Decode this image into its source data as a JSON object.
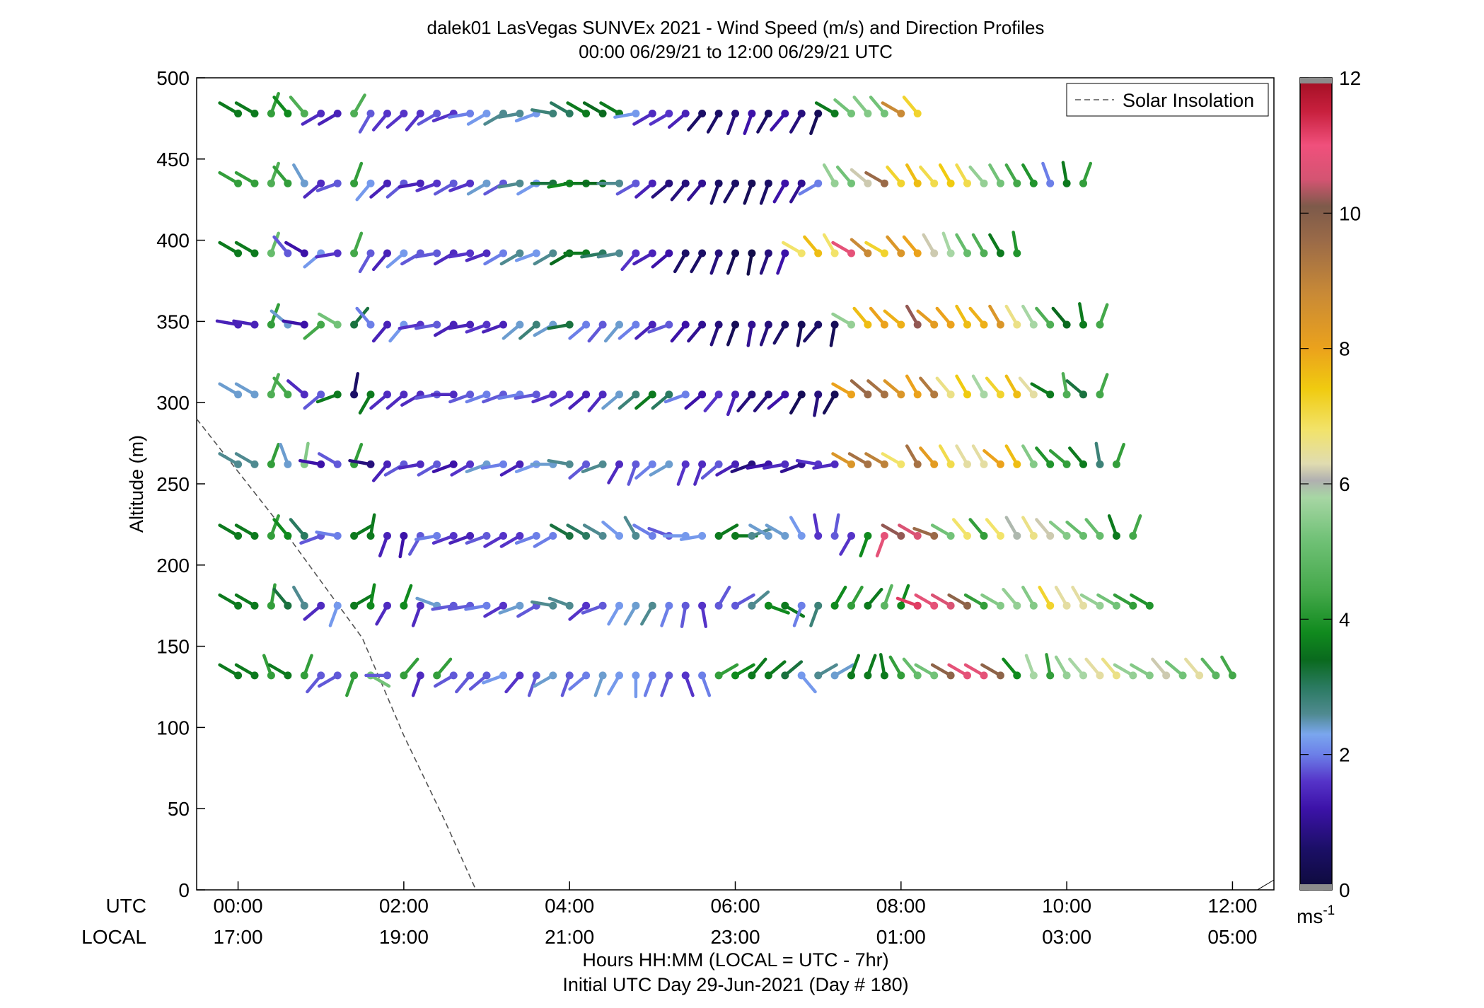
{
  "chart_data": {
    "type": "wind-barb-profile",
    "title": "dalek01 LasVegas SUNVEx 2021 - Wind Speed (m/s) and Direction Profiles",
    "subtitle": "00:00 06/29/21 to 12:00 06/29/21  UTC",
    "ylabel": "Altitude (m)",
    "xlabel": "Hours HH:MM  (LOCAL = UTC - 7hr)",
    "xlabel2": "Initial UTC Day 29-Jun-2021 (Day # 180)",
    "row_label_utc": "UTC",
    "row_label_local": "LOCAL",
    "xlim": [
      -0.5,
      12.5
    ],
    "ylim": [
      0,
      500
    ],
    "yticks": [
      0,
      50,
      100,
      150,
      200,
      250,
      300,
      350,
      400,
      450,
      500
    ],
    "xticks": [
      {
        "x": 0,
        "utc": "00:00",
        "local": "17:00"
      },
      {
        "x": 2,
        "utc": "02:00",
        "local": "19:00"
      },
      {
        "x": 4,
        "utc": "04:00",
        "local": "21:00"
      },
      {
        "x": 6,
        "utc": "06:00",
        "local": "23:00"
      },
      {
        "x": 8,
        "utc": "08:00",
        "local": "01:00"
      },
      {
        "x": 10,
        "utc": "10:00",
        "local": "03:00"
      },
      {
        "x": 12,
        "utc": "12:00",
        "local": "05:00"
      }
    ],
    "colorbar": {
      "label": "ms",
      "label_sup": "-1",
      "range": [
        0,
        12
      ],
      "ticks": [
        0,
        2,
        4,
        6,
        8,
        10,
        12
      ]
    },
    "legend": {
      "position": "top-right",
      "entries": [
        {
          "name": "Solar Insolation",
          "style": "dashed",
          "color": "#555555"
        }
      ]
    },
    "solar_insolation": {
      "x": [
        -0.5,
        0.5,
        1.5,
        2.0,
        2.5,
        2.87
      ],
      "y": [
        290,
        225,
        155,
        95,
        42,
        0
      ]
    },
    "altitudes": [
      132,
      175,
      218,
      262,
      305,
      348,
      392,
      435,
      478
    ],
    "times_start": 0,
    "times_step": 0.2,
    "notes": "speed rows: one per altitude (bottom to top), ~61 times each; direction in degrees (meteorological, from)",
    "speed": [
      [
        3.6,
        3.6,
        4.2,
        3.6,
        4.2,
        1.8,
        1.8,
        4.2,
        5.2,
        1.8,
        4.2,
        1.5,
        4.2,
        1.8,
        1.8,
        1.8,
        2.2,
        1.6,
        1.8,
        2.4,
        1.8,
        2.0,
        2.4,
        2.2,
        2.2,
        2.0,
        1.8,
        1.6,
        2.0,
        4.2,
        3.8,
        3.6,
        3.6,
        3.2,
        2.2,
        2.6,
        2.4,
        3.6,
        3.6,
        3.6,
        4.2,
        5.0,
        5.2,
        9.8,
        10.8,
        10.8,
        9.8,
        3.8,
        5.8,
        4.2,
        5.6,
        5.8,
        6.4,
        6.6,
        5.6,
        5.4,
        6.2,
        5.2,
        6.4,
        4.8,
        4.4
      ],
      [
        3.6,
        3.6,
        4.2,
        3.2,
        2.6,
        1.5,
        2.2,
        3.6,
        3.8,
        1.5,
        3.8,
        1.5,
        2.4,
        1.8,
        1.8,
        2.0,
        1.6,
        2.4,
        1.8,
        2.6,
        2.6,
        1.6,
        1.8,
        2.2,
        2.4,
        2.6,
        2.0,
        1.8,
        1.6,
        1.8,
        1.8,
        2.6,
        3.8,
        3.6,
        2.0,
        2.8,
        3.8,
        4.2,
        3.6,
        4.8,
        3.8,
        11.2,
        10.8,
        10.6,
        9.8,
        4.2,
        5.4,
        5.6,
        5.4,
        7.2,
        6.4,
        6.4,
        5.6,
        5.2,
        4.2,
        4.0
      ],
      [
        3.6,
        3.6,
        4.2,
        3.8,
        3.0,
        1.8,
        2.0,
        3.6,
        3.6,
        1.4,
        1.2,
        1.8,
        2.0,
        1.6,
        1.4,
        1.8,
        1.6,
        1.6,
        2.0,
        2.0,
        3.2,
        3.0,
        2.6,
        2.2,
        2.6,
        2.0,
        1.8,
        2.2,
        2.2,
        3.6,
        3.6,
        2.6,
        2.4,
        2.4,
        2.2,
        1.6,
        1.8,
        1.6,
        3.8,
        10.8,
        10.2,
        10.6,
        9.6,
        5.2,
        6.8,
        4.2,
        6.8,
        6.0,
        6.6,
        6.2,
        5.4,
        5.0,
        5.0,
        3.6,
        4.4
      ],
      [
        2.6,
        2.6,
        4.2,
        2.4,
        5.4,
        1.2,
        1.8,
        4.2,
        0.8,
        1.4,
        1.8,
        1.5,
        1.8,
        1.2,
        1.6,
        2.4,
        2.0,
        1.4,
        2.2,
        2.4,
        2.6,
        1.8,
        2.6,
        1.5,
        1.8,
        2.0,
        2.4,
        1.6,
        1.5,
        1.8,
        1.4,
        0.8,
        1.2,
        1.5,
        1.0,
        1.6,
        1.5,
        8.4,
        9.4,
        9.0,
        6.8,
        9.4,
        8.2,
        7.0,
        6.4,
        6.4,
        8.0,
        7.6,
        5.4,
        4.0,
        4.2,
        3.6,
        2.8,
        4.2
      ],
      [
        2.4,
        2.4,
        4.6,
        4.4,
        1.5,
        1.8,
        3.6,
        0.6,
        3.6,
        1.5,
        1.5,
        1.5,
        1.8,
        1.5,
        1.8,
        2.0,
        1.8,
        2.0,
        1.8,
        1.6,
        1.6,
        1.4,
        1.5,
        2.4,
        2.8,
        3.6,
        3.0,
        2.0,
        1.2,
        1.6,
        1.4,
        0.8,
        0.8,
        1.2,
        0.4,
        0.8,
        0.4,
        8.0,
        9.6,
        9.4,
        8.4,
        8.0,
        9.2,
        6.6,
        7.4,
        5.8,
        7.2,
        7.6,
        6.4,
        3.6,
        4.6,
        3.2,
        4.4
      ],
      [
        1.4,
        1.4,
        4.2,
        2.4,
        1.2,
        4.4,
        5.2,
        3.2,
        2.0,
        1.4,
        2.2,
        1.6,
        1.8,
        1.4,
        1.4,
        1.6,
        1.4,
        2.4,
        2.8,
        2.4,
        3.2,
        2.0,
        1.8,
        2.4,
        2.0,
        1.4,
        1.8,
        1.2,
        1.0,
        0.8,
        0.4,
        1.0,
        0.8,
        0.6,
        0.4,
        0.6,
        0.4,
        5.6,
        7.6,
        8.0,
        7.8,
        10.2,
        8.2,
        8.0,
        7.6,
        7.8,
        8.4,
        6.6,
        5.8,
        4.6,
        3.4,
        3.6,
        4.4
      ],
      [
        3.6,
        3.6,
        5.0,
        1.8,
        1.2,
        2.2,
        1.6,
        4.4,
        1.8,
        1.4,
        2.2,
        1.8,
        1.8,
        1.5,
        1.6,
        1.5,
        2.0,
        2.6,
        2.2,
        2.6,
        3.4,
        3.6,
        3.0,
        2.6,
        1.6,
        1.4,
        1.2,
        0.6,
        0.6,
        0.8,
        0.4,
        0.2,
        0.8,
        1.2,
        6.8,
        7.6,
        6.8,
        10.8,
        8.8,
        7.2,
        8.4,
        8.0,
        6.2,
        5.8,
        5.0,
        4.6,
        3.6,
        4.0
      ],
      [
        4.2,
        4.2,
        4.6,
        4.2,
        2.4,
        1.5,
        1.8,
        4.2,
        2.2,
        1.4,
        1.8,
        1.4,
        1.6,
        1.8,
        1.6,
        2.4,
        1.8,
        2.6,
        2.2,
        3.2,
        3.8,
        3.6,
        3.4,
        2.6,
        1.8,
        1.4,
        0.8,
        0.8,
        1.0,
        0.6,
        0.6,
        0.4,
        0.6,
        1.2,
        1.0,
        2.0,
        5.6,
        5.2,
        6.2,
        9.6,
        7.2,
        7.6,
        7.0,
        7.4,
        7.0,
        5.6,
        5.2,
        4.4,
        4.0,
        2.0,
        3.6,
        4.2
      ],
      [
        3.6,
        3.6,
        4.2,
        3.8,
        4.6,
        1.5,
        1.4,
        4.6,
        1.8,
        1.6,
        1.6,
        1.6,
        1.8,
        1.6,
        2.0,
        2.2,
        2.6,
        2.6,
        2.2,
        2.8,
        3.0,
        3.6,
        3.4,
        3.6,
        2.2,
        1.5,
        1.6,
        1.4,
        0.6,
        0.6,
        0.8,
        1.2,
        0.6,
        1.2,
        0.8,
        0.4,
        3.6,
        5.2,
        5.4,
        5.2,
        8.8,
        7.2
      ]
    ],
    "direction": [
      [
        300,
        300,
        340,
        300,
        20,
        220,
        240,
        200,
        120,
        270,
        40,
        200,
        40,
        240,
        220,
        230,
        250,
        220,
        200,
        240,
        200,
        230,
        200,
        210,
        180,
        200,
        200,
        160,
        160,
        60,
        60,
        40,
        50,
        50,
        140,
        60,
        60,
        20,
        20,
        350,
        330,
        320,
        300,
        300,
        300,
        300,
        300,
        320,
        340,
        350,
        330,
        320,
        320,
        320,
        300,
        300,
        320,
        310,
        320,
        320,
        330
      ],
      [
        300,
        300,
        10,
        320,
        330,
        230,
        200,
        60,
        10,
        210,
        20,
        200,
        290,
        260,
        260,
        260,
        240,
        250,
        240,
        280,
        290,
        230,
        250,
        210,
        210,
        210,
        200,
        190,
        170,
        30,
        60,
        50,
        110,
        120,
        200,
        200,
        30,
        30,
        40,
        20,
        20,
        290,
        300,
        300,
        300,
        300,
        300,
        320,
        330,
        330,
        330,
        330,
        300,
        300,
        300,
        300
      ],
      [
        300,
        300,
        20,
        320,
        320,
        250,
        280,
        60,
        10,
        200,
        190,
        210,
        260,
        250,
        250,
        250,
        240,
        240,
        250,
        240,
        300,
        300,
        300,
        310,
        330,
        300,
        290,
        270,
        260,
        60,
        90,
        70,
        300,
        300,
        330,
        350,
        10,
        210,
        200,
        200,
        300,
        300,
        290,
        300,
        320,
        320,
        320,
        330,
        330,
        320,
        310,
        310,
        320,
        340,
        20
      ],
      [
        300,
        300,
        20,
        340,
        10,
        280,
        300,
        20,
        280,
        220,
        240,
        260,
        240,
        250,
        240,
        250,
        260,
        240,
        250,
        270,
        280,
        230,
        250,
        210,
        200,
        230,
        240,
        200,
        200,
        230,
        240,
        250,
        260,
        260,
        250,
        280,
        260,
        300,
        300,
        300,
        300,
        330,
        320,
        330,
        330,
        330,
        310,
        330,
        330,
        320,
        310,
        320,
        350,
        20
      ],
      [
        300,
        300,
        20,
        320,
        310,
        230,
        250,
        10,
        210,
        230,
        230,
        240,
        260,
        270,
        250,
        250,
        250,
        260,
        260,
        250,
        240,
        230,
        220,
        230,
        230,
        230,
        230,
        250,
        230,
        220,
        200,
        220,
        220,
        230,
        210,
        190,
        210,
        300,
        310,
        310,
        310,
        330,
        320,
        320,
        330,
        330,
        320,
        330,
        320,
        300,
        350,
        310,
        20
      ],
      [
        280,
        280,
        20,
        310,
        280,
        230,
        300,
        40,
        320,
        220,
        220,
        260,
        260,
        240,
        260,
        250,
        250,
        230,
        230,
        240,
        260,
        230,
        220,
        220,
        230,
        230,
        250,
        220,
        220,
        200,
        200,
        190,
        200,
        210,
        190,
        220,
        190,
        300,
        320,
        320,
        310,
        330,
        310,
        320,
        330,
        320,
        330,
        330,
        330,
        320,
        320,
        350,
        20
      ],
      [
        300,
        300,
        20,
        320,
        300,
        230,
        260,
        20,
        210,
        220,
        230,
        240,
        260,
        240,
        260,
        250,
        240,
        240,
        250,
        240,
        240,
        270,
        260,
        260,
        220,
        240,
        230,
        210,
        210,
        200,
        200,
        190,
        200,
        200,
        300,
        320,
        330,
        300,
        310,
        300,
        320,
        320,
        330,
        340,
        330,
        330,
        330,
        350
      ],
      [
        300,
        300,
        20,
        320,
        330,
        230,
        250,
        20,
        220,
        230,
        230,
        260,
        250,
        240,
        250,
        240,
        240,
        260,
        240,
        270,
        260,
        270,
        270,
        270,
        240,
        230,
        230,
        220,
        220,
        200,
        210,
        200,
        200,
        210,
        210,
        240,
        330,
        320,
        310,
        300,
        320,
        330,
        320,
        330,
        330,
        320,
        330,
        330,
        330,
        340,
        350,
        20
      ],
      [
        300,
        300,
        20,
        320,
        320,
        240,
        240,
        30,
        210,
        220,
        230,
        220,
        240,
        250,
        260,
        240,
        240,
        260,
        250,
        280,
        300,
        300,
        300,
        300,
        260,
        240,
        240,
        230,
        220,
        210,
        200,
        200,
        210,
        220,
        210,
        200,
        300,
        310,
        320,
        320,
        300,
        320
      ]
    ]
  }
}
